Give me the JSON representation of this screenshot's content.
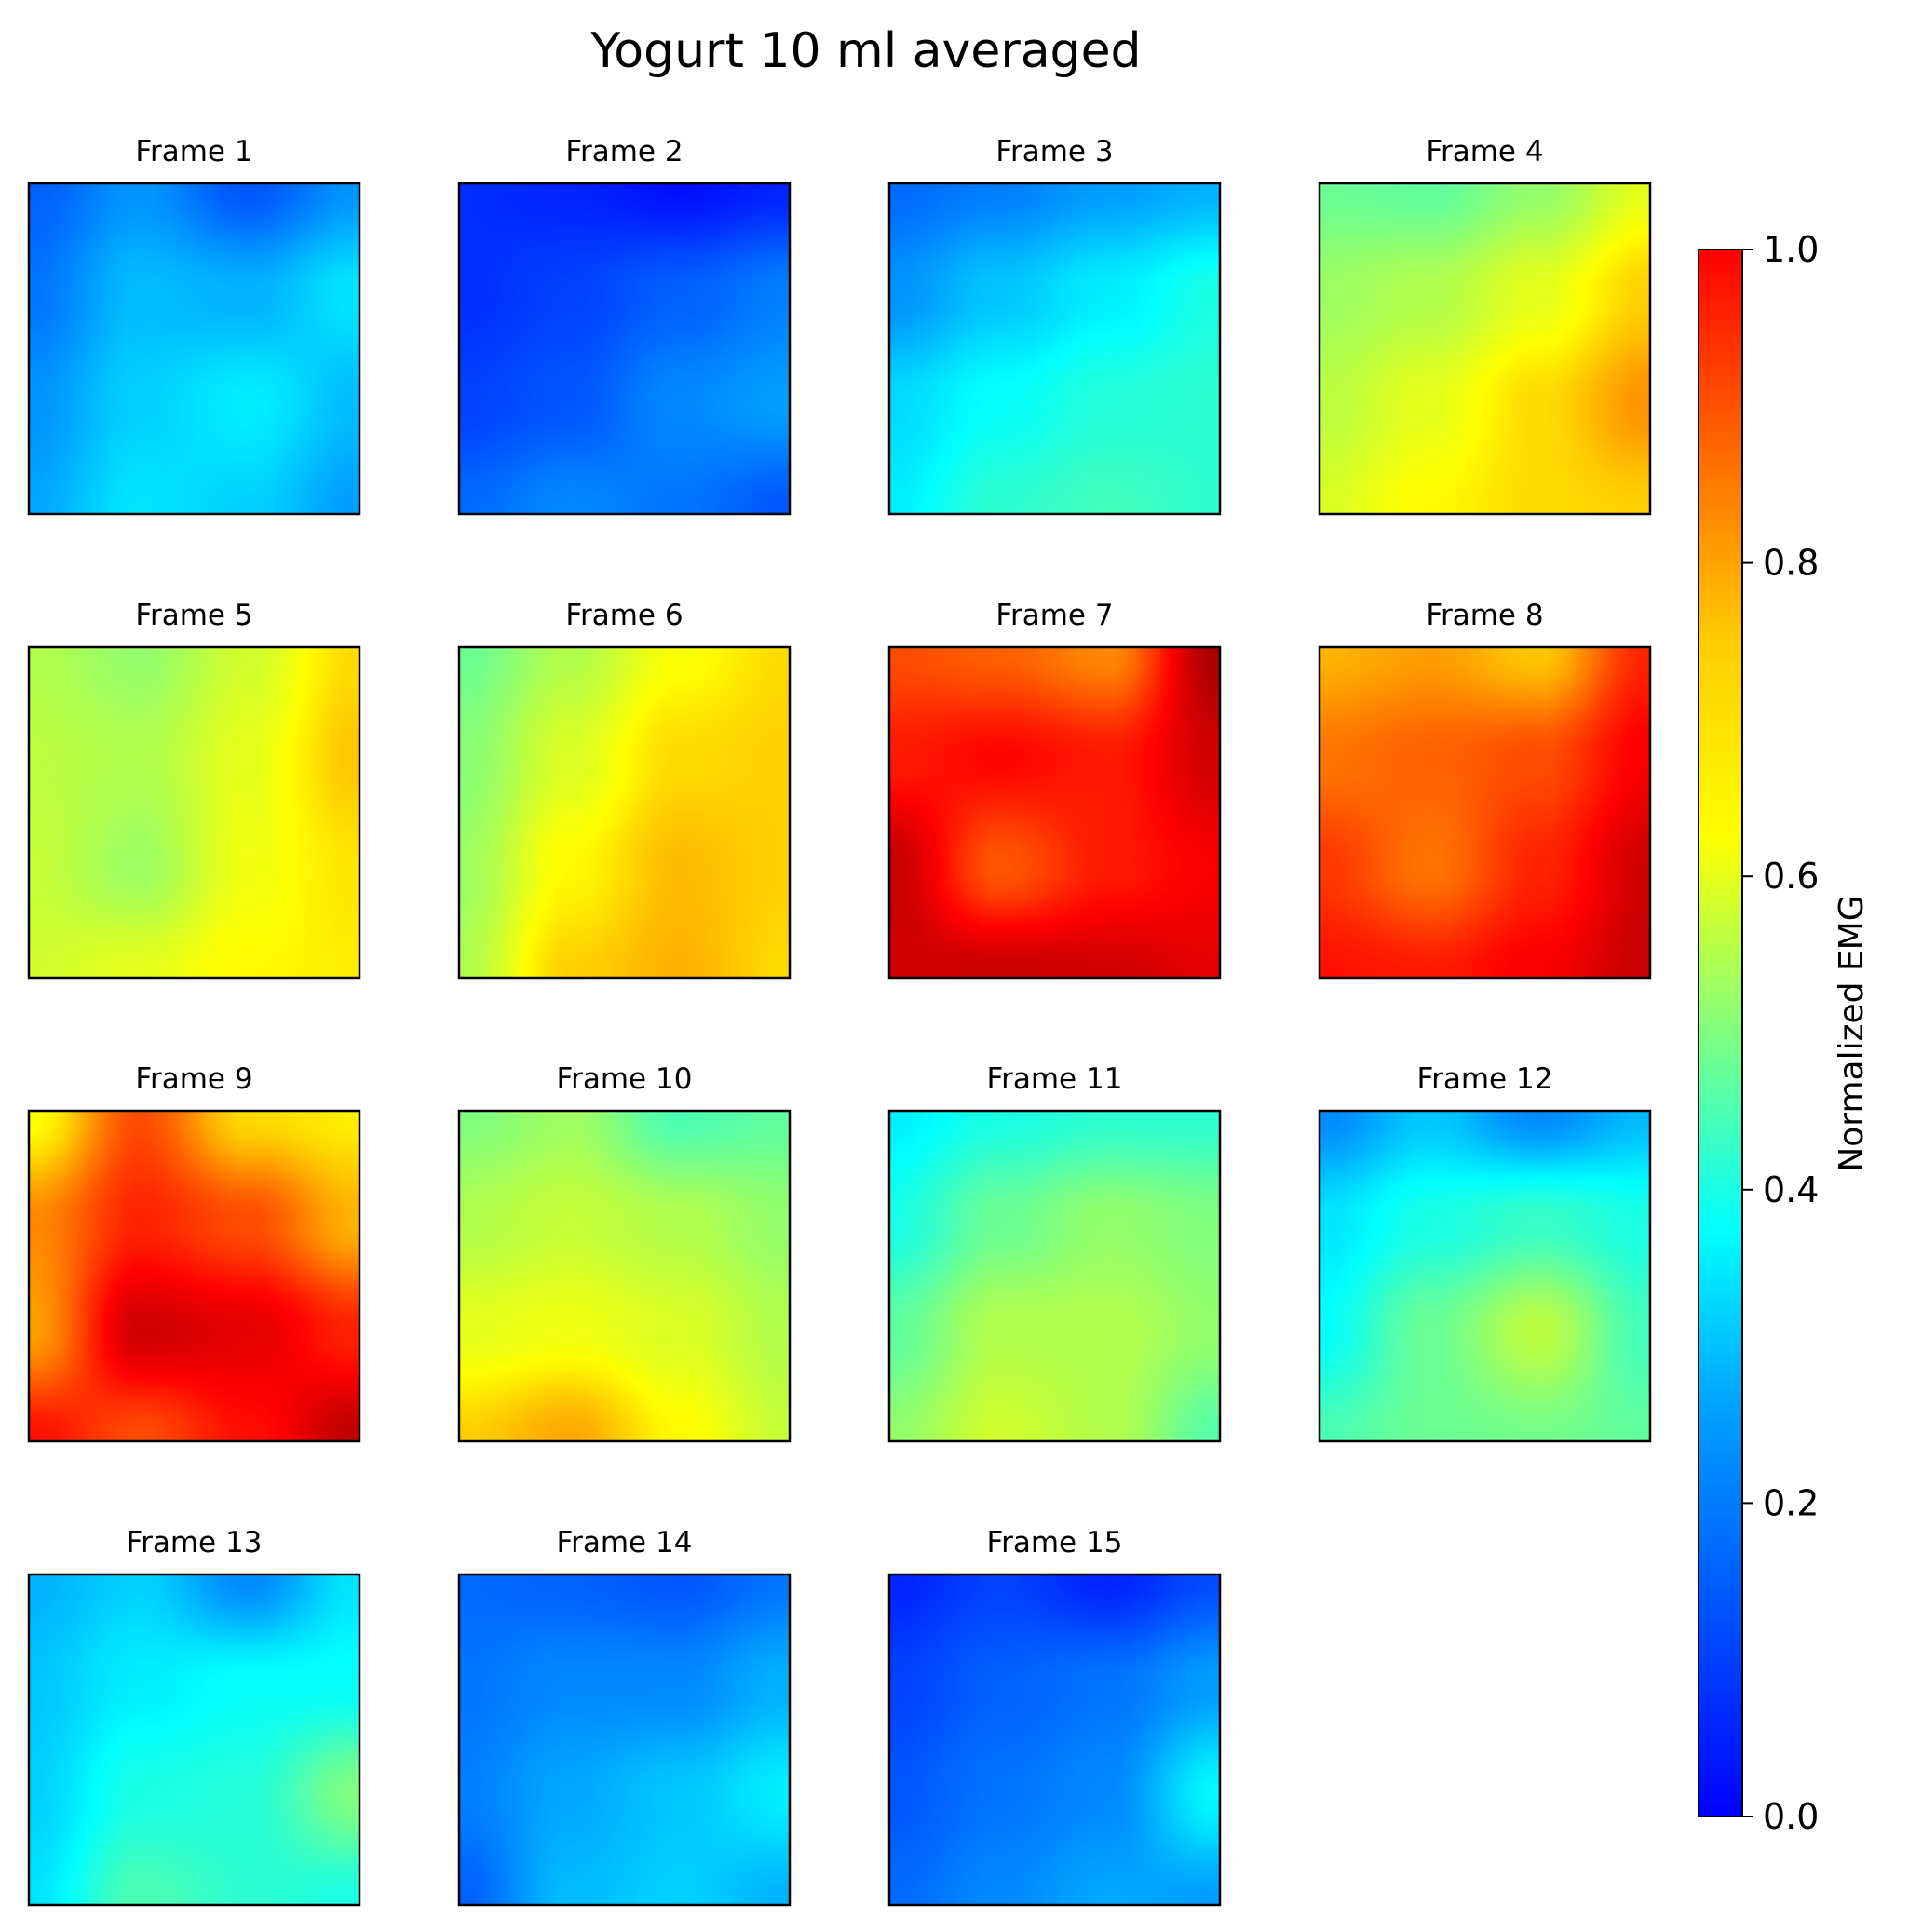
{
  "chart_data": {
    "type": "heatmap",
    "title": "Yogurt 10 ml averaged",
    "colormap": "jet",
    "colorbar": {
      "label": "Normalized EMG",
      "range": [
        0.0,
        1.0
      ],
      "ticks": [
        "0.0",
        "0.2",
        "0.4",
        "0.6",
        "0.8",
        "1.0"
      ]
    },
    "grid_layout": {
      "rows": 4,
      "cols": 4
    },
    "frames": [
      {
        "label": "Frame 1",
        "grid": [
          [
            0.22,
            0.27,
            0.21,
            0.27
          ],
          [
            0.24,
            0.31,
            0.3,
            0.35
          ],
          [
            0.27,
            0.33,
            0.36,
            0.31
          ],
          [
            0.29,
            0.35,
            0.33,
            0.28
          ]
        ]
      },
      {
        "label": "Frame 2",
        "grid": [
          [
            0.17,
            0.16,
            0.14,
            0.16
          ],
          [
            0.17,
            0.19,
            0.22,
            0.25
          ],
          [
            0.19,
            0.21,
            0.26,
            0.28
          ],
          [
            0.23,
            0.26,
            0.24,
            0.21
          ]
        ]
      },
      {
        "label": "Frame 3",
        "grid": [
          [
            0.23,
            0.25,
            0.28,
            0.3
          ],
          [
            0.27,
            0.32,
            0.36,
            0.4
          ],
          [
            0.34,
            0.38,
            0.41,
            0.42
          ],
          [
            0.36,
            0.42,
            0.44,
            0.42
          ]
        ]
      },
      {
        "label": "Frame 4",
        "grid": [
          [
            0.48,
            0.47,
            0.52,
            0.6
          ],
          [
            0.53,
            0.55,
            0.6,
            0.67
          ],
          [
            0.56,
            0.6,
            0.66,
            0.73
          ],
          [
            0.59,
            0.63,
            0.66,
            0.67
          ]
        ]
      },
      {
        "label": "Frame 5",
        "grid": [
          [
            0.55,
            0.52,
            0.58,
            0.66
          ],
          [
            0.56,
            0.55,
            0.6,
            0.68
          ],
          [
            0.57,
            0.53,
            0.61,
            0.65
          ],
          [
            0.58,
            0.6,
            0.63,
            0.64
          ]
        ]
      },
      {
        "label": "Frame 6",
        "grid": [
          [
            0.48,
            0.55,
            0.62,
            0.66
          ],
          [
            0.51,
            0.59,
            0.66,
            0.67
          ],
          [
            0.53,
            0.63,
            0.69,
            0.67
          ],
          [
            0.55,
            0.67,
            0.7,
            0.66
          ]
        ]
      },
      {
        "label": "Frame 7",
        "grid": [
          [
            0.8,
            0.78,
            0.74,
            0.96
          ],
          [
            0.85,
            0.87,
            0.85,
            0.92
          ],
          [
            0.93,
            0.79,
            0.85,
            0.88
          ],
          [
            0.92,
            0.93,
            0.92,
            0.9
          ]
        ]
      },
      {
        "label": "Frame 8",
        "grid": [
          [
            0.7,
            0.72,
            0.68,
            0.84
          ],
          [
            0.76,
            0.78,
            0.8,
            0.88
          ],
          [
            0.82,
            0.76,
            0.84,
            0.92
          ],
          [
            0.86,
            0.85,
            0.88,
            0.93
          ]
        ]
      },
      {
        "label": "Frame 9",
        "grid": [
          [
            0.62,
            0.8,
            0.66,
            0.64
          ],
          [
            0.74,
            0.84,
            0.8,
            0.7
          ],
          [
            0.72,
            0.92,
            0.9,
            0.84
          ],
          [
            0.86,
            0.8,
            0.86,
            0.94
          ]
        ]
      },
      {
        "label": "Frame 10",
        "grid": [
          [
            0.5,
            0.53,
            0.45,
            0.47
          ],
          [
            0.55,
            0.57,
            0.55,
            0.52
          ],
          [
            0.6,
            0.61,
            0.59,
            0.55
          ],
          [
            0.67,
            0.71,
            0.63,
            0.57
          ]
        ]
      },
      {
        "label": "Frame 11",
        "grid": [
          [
            0.36,
            0.4,
            0.42,
            0.42
          ],
          [
            0.4,
            0.48,
            0.52,
            0.5
          ],
          [
            0.47,
            0.55,
            0.55,
            0.52
          ],
          [
            0.52,
            0.58,
            0.55,
            0.46
          ]
        ]
      },
      {
        "label": "Frame 12",
        "grid": [
          [
            0.26,
            0.32,
            0.26,
            0.31
          ],
          [
            0.35,
            0.4,
            0.43,
            0.4
          ],
          [
            0.38,
            0.48,
            0.56,
            0.44
          ],
          [
            0.45,
            0.48,
            0.49,
            0.47
          ]
        ]
      },
      {
        "label": "Frame 13",
        "grid": [
          [
            0.3,
            0.33,
            0.26,
            0.35
          ],
          [
            0.32,
            0.36,
            0.38,
            0.38
          ],
          [
            0.33,
            0.4,
            0.41,
            0.5
          ],
          [
            0.35,
            0.45,
            0.42,
            0.4
          ]
        ]
      },
      {
        "label": "Frame 14",
        "grid": [
          [
            0.23,
            0.22,
            0.21,
            0.24
          ],
          [
            0.24,
            0.26,
            0.26,
            0.3
          ],
          [
            0.25,
            0.29,
            0.32,
            0.36
          ],
          [
            0.22,
            0.31,
            0.33,
            0.3
          ]
        ]
      },
      {
        "label": "Frame 15",
        "grid": [
          [
            0.16,
            0.19,
            0.16,
            0.2
          ],
          [
            0.19,
            0.22,
            0.24,
            0.28
          ],
          [
            0.21,
            0.24,
            0.26,
            0.37
          ],
          [
            0.23,
            0.26,
            0.29,
            0.28
          ]
        ]
      }
    ]
  }
}
